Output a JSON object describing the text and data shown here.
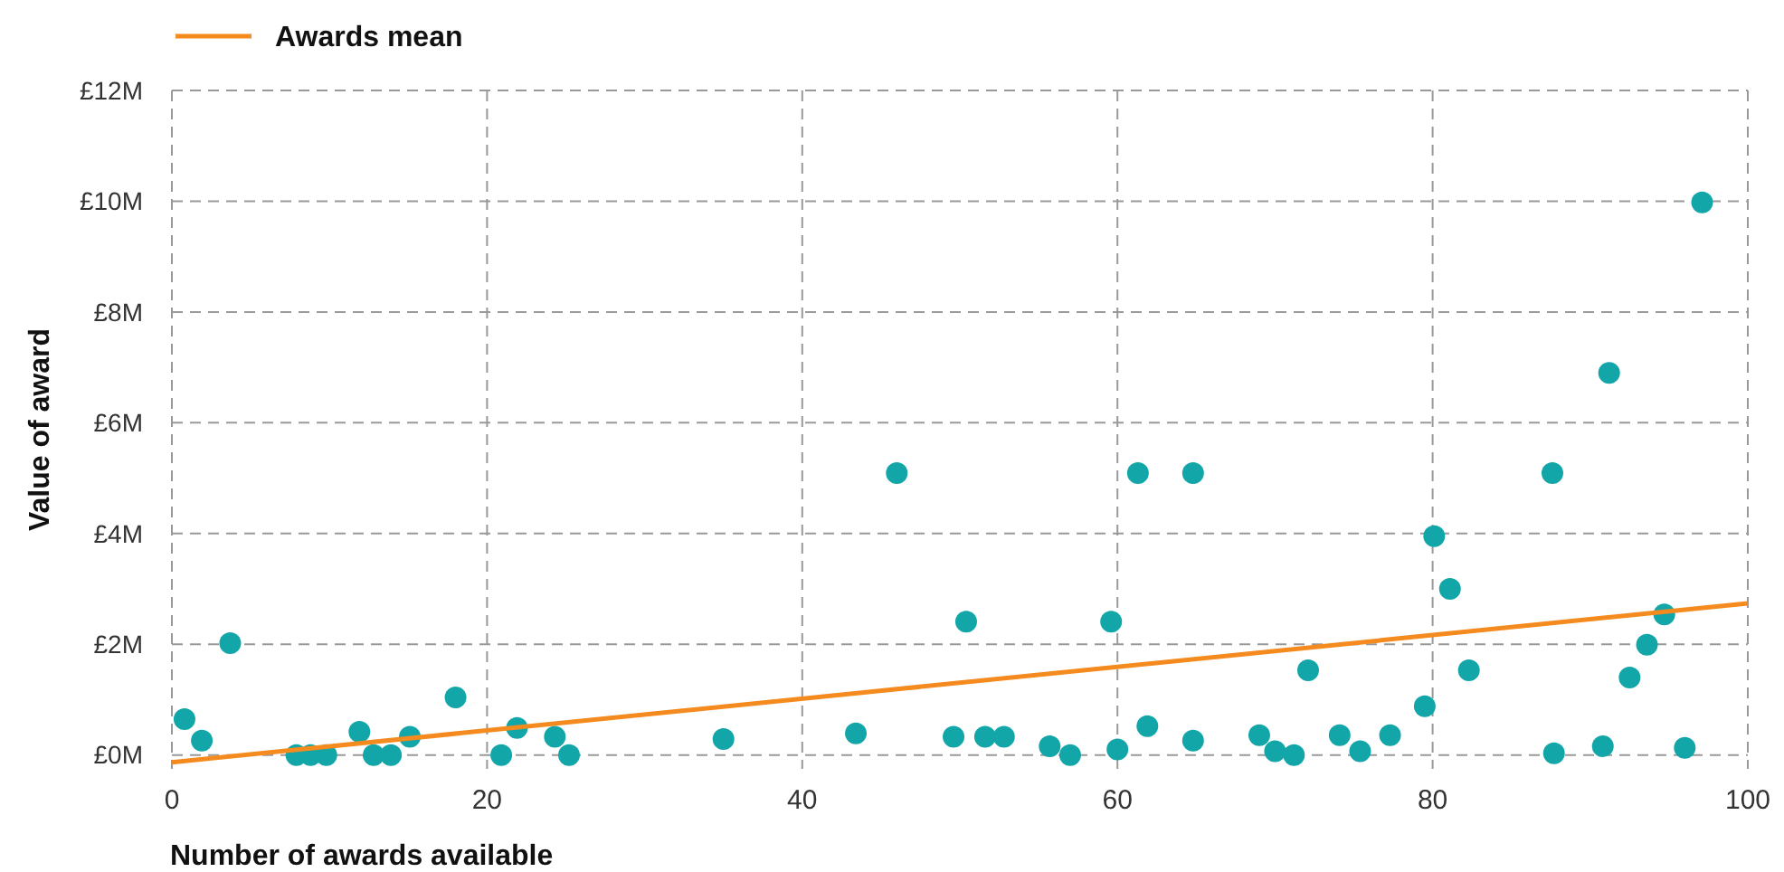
{
  "chart_data": {
    "type": "scatter",
    "xlabel": "Number of awards available",
    "ylabel": "Value of award",
    "xlim": [
      0,
      100
    ],
    "xticks": [
      0,
      20,
      40,
      60,
      80,
      100
    ],
    "ylim": [
      -0.25,
      12
    ],
    "yticks": [
      {
        "value": 0,
        "label": "£0M"
      },
      {
        "value": 2,
        "label": "£2M"
      },
      {
        "value": 4,
        "label": "£4M"
      },
      {
        "value": 6,
        "label": "£6M"
      },
      {
        "value": 8,
        "label": "£8M"
      },
      {
        "value": 10,
        "label": "£10M"
      },
      {
        "value": 12,
        "label": "£12M"
      }
    ],
    "grid": true,
    "legend": "top left",
    "series": [
      {
        "color": "#12a6a9",
        "marker": "circle",
        "x": [
          0.8,
          1.9,
          3.7,
          7.9,
          8.8,
          9.8,
          11.9,
          12.8,
          13.9,
          15.1,
          18.0,
          20.9,
          21.9,
          24.3,
          25.2,
          35.0,
          43.4,
          46.0,
          49.6,
          50.4,
          51.6,
          52.8,
          55.7,
          57.0,
          59.6,
          60.0,
          61.3,
          61.9,
          64.8,
          64.8,
          69.0,
          70.0,
          71.2,
          72.1,
          74.1,
          75.4,
          77.3,
          79.5,
          80.1,
          81.1,
          82.3,
          87.7,
          87.6,
          90.8,
          91.2,
          92.5,
          93.6,
          94.7,
          96.0,
          97.1
        ],
        "values": [
          0.65,
          0.26,
          2.02,
          0,
          0,
          0,
          0.42,
          0,
          0,
          0.33,
          1.04,
          0,
          0.49,
          0.33,
          0,
          0.29,
          0.39,
          5.09,
          0.33,
          2.41,
          0.33,
          0.33,
          0.16,
          0,
          2.41,
          0.1,
          5.09,
          0.52,
          5.09,
          0.26,
          0.36,
          0.07,
          0,
          1.53,
          0.36,
          0.07,
          0.36,
          0.88,
          3.95,
          3.0,
          1.53,
          0.03,
          5.09,
          0.16,
          6.9,
          1.4,
          1.99,
          2.54,
          0.13,
          9.98
        ]
      },
      {
        "type": "line",
        "name": "Awards mean",
        "color": "#f58a1f",
        "line_style": "solid",
        "marker": "none",
        "x": [
          0,
          100
        ],
        "values": [
          -0.13,
          2.74
        ]
      }
    ]
  }
}
